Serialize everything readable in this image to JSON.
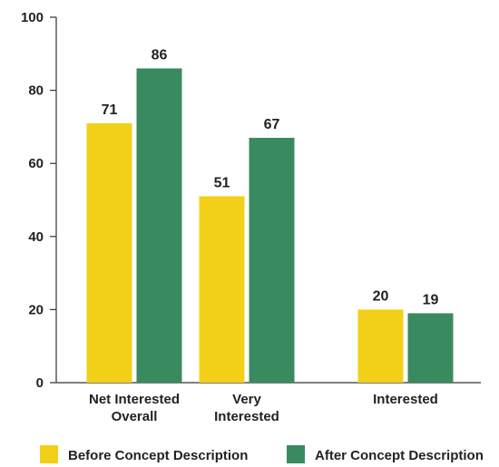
{
  "chart_data": {
    "type": "bar",
    "categories": [
      [
        "Net Interested",
        "Overall"
      ],
      [
        "Very",
        "Interested"
      ],
      [
        "Interested"
      ]
    ],
    "series": [
      {
        "name": "Before Concept Description",
        "values": [
          71,
          51,
          20
        ],
        "color": "#f2d017"
      },
      {
        "name": "After Concept Description",
        "values": [
          86,
          67,
          19
        ],
        "color": "#3a8a60"
      }
    ],
    "ylim": [
      0,
      100
    ],
    "yticks": [
      0,
      20,
      40,
      60,
      80,
      100
    ],
    "grid": false,
    "legend": "bottom"
  }
}
